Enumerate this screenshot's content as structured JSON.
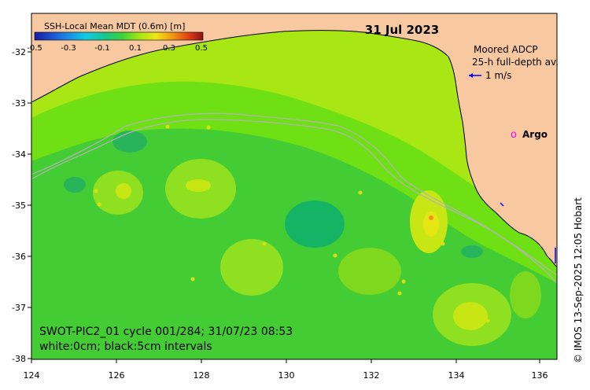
{
  "map": {
    "date": "31 Jul 2023",
    "colorbar": {
      "title": "SSH-Local Mean MDT (0.6m) [m]",
      "ticks": [
        "-0.5",
        "-0.3",
        "-0.1",
        "0.1",
        "0.3",
        "0.5"
      ],
      "colors": [
        "#1a1aa8",
        "#1e6ee0",
        "#14c8e6",
        "#14c88c",
        "#3cd23c",
        "#a0e614",
        "#f0e614",
        "#f09614",
        "#dc3c14",
        "#8c1414"
      ]
    },
    "legend": {
      "adcp_line1": "Moored ADCP",
      "adcp_line2": "25-h full-depth av.",
      "adcp_speed": "1 m/s",
      "argo_symbol": "o",
      "argo_label": "Argo"
    },
    "footer": {
      "line1": "SWOT-PIC2_01 cycle 001/284; 31/07/23 08:53",
      "line2": "white:0cm; black:5cm intervals"
    },
    "credit": "© IMOS 13-Sep-2025 12:05 Hobart",
    "x_ticks": [
      "124",
      "126",
      "128",
      "130",
      "132",
      "134",
      "136"
    ],
    "y_ticks": [
      "-32",
      "-33",
      "-34",
      "-35",
      "-36",
      "-37",
      "-38"
    ],
    "colors": {
      "land": "#f8c8a0",
      "field_bg": "#3cc83c",
      "shelf": "#9ee614",
      "band": "#78e614",
      "eddy_green": "#5ad828",
      "eddy_teal": "#14b464",
      "warm": "#c8e614",
      "warm_core": "#e6e614",
      "depth_contour": "#b4b4b4",
      "argo": "#ff00ff",
      "adcp_arrow": "#0000ff"
    }
  }
}
